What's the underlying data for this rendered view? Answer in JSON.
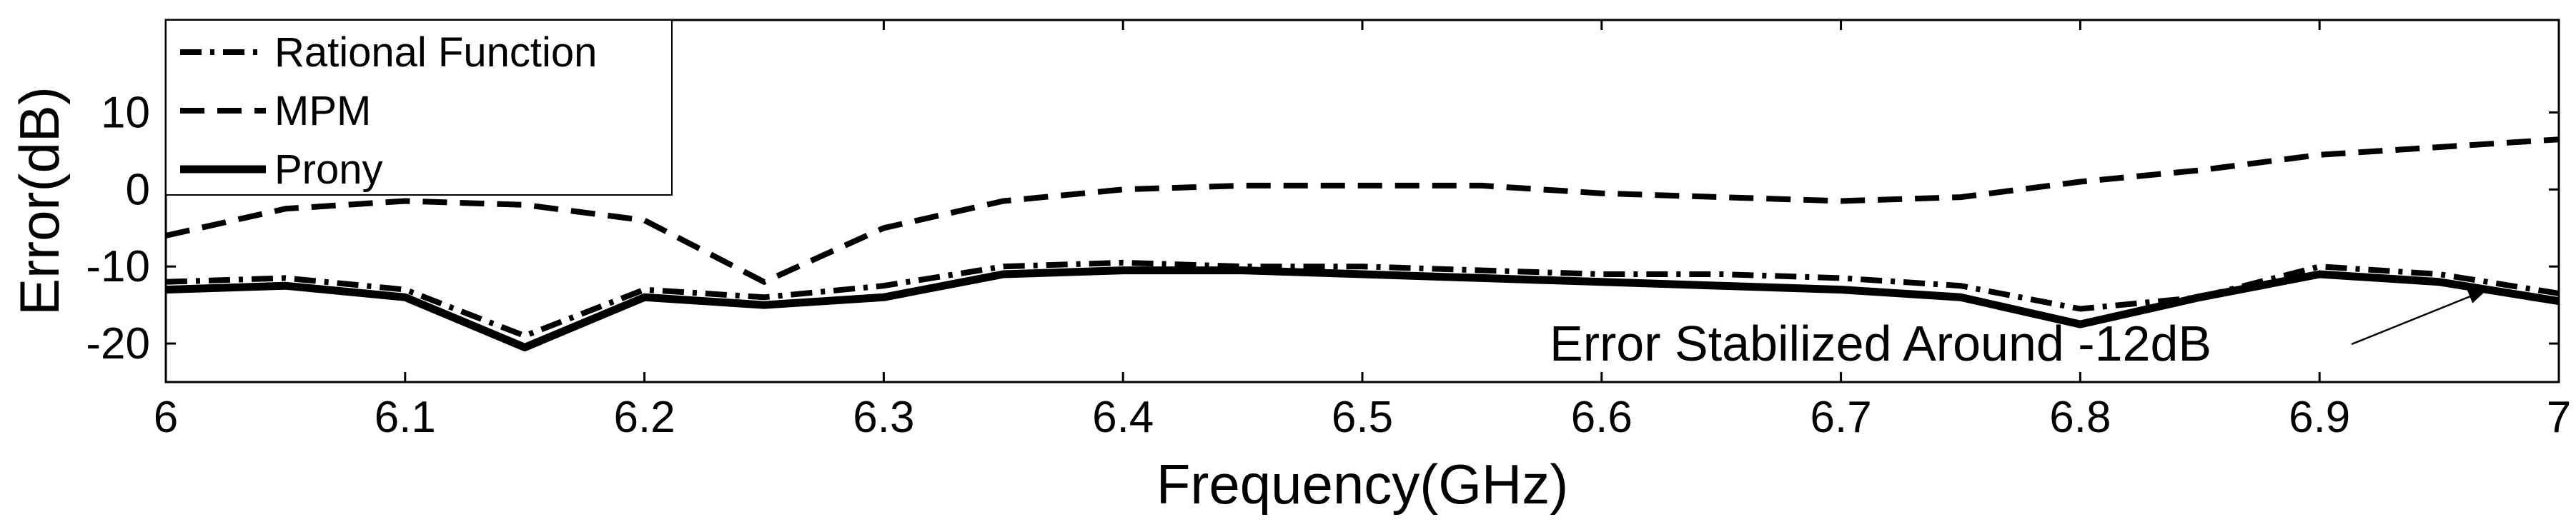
{
  "chart_data": {
    "type": "line",
    "xlabel": "Frequency(GHz)",
    "ylabel": "Error(dB)",
    "xlim": [
      6,
      7
    ],
    "ylim": [
      -25,
      22
    ],
    "xticks": [
      "6",
      "6.1",
      "6.2",
      "6.3",
      "6.4",
      "6.5",
      "6.6",
      "6.7",
      "6.8",
      "6.9",
      "7"
    ],
    "yticks": [
      "10",
      "0",
      "-10",
      "-20"
    ],
    "grid": false,
    "legend_position": "top-left",
    "x": [
      6.0,
      6.05,
      6.1,
      6.15,
      6.2,
      6.25,
      6.3,
      6.35,
      6.4,
      6.45,
      6.5,
      6.55,
      6.6,
      6.65,
      6.7,
      6.75,
      6.8,
      6.85,
      6.9,
      6.95,
      7.0
    ],
    "series": [
      {
        "name": "Rational Function",
        "style": "dash-dot",
        "values": [
          -12,
          -11.5,
          -13,
          -19,
          -13,
          -14,
          -12.5,
          -10,
          -9.5,
          -10,
          -10,
          -10.5,
          -11,
          -11,
          -11.5,
          -12.5,
          -15.5,
          -14,
          -10,
          -11,
          -13.5
        ]
      },
      {
        "name": "MPM",
        "style": "dashed",
        "values": [
          -6,
          -2.5,
          -1.5,
          -2,
          -4,
          -12,
          -5,
          -1.5,
          0,
          0.5,
          0.5,
          0.5,
          -0.5,
          -1,
          -1.5,
          -1,
          1,
          2.5,
          4.5,
          5.5,
          6.5
        ]
      },
      {
        "name": "Prony",
        "style": "solid",
        "values": [
          -13,
          -12.5,
          -14,
          -20.5,
          -14,
          -15,
          -14,
          -11,
          -10.5,
          -10.5,
          -11,
          -11.5,
          -12,
          -12.5,
          -13,
          -14,
          -17.5,
          -14,
          -11,
          -12,
          -14.5
        ]
      }
    ],
    "annotation": {
      "text": "Error Stabilized Around -12dB",
      "target_x": 6.97,
      "target_y": -13
    }
  }
}
